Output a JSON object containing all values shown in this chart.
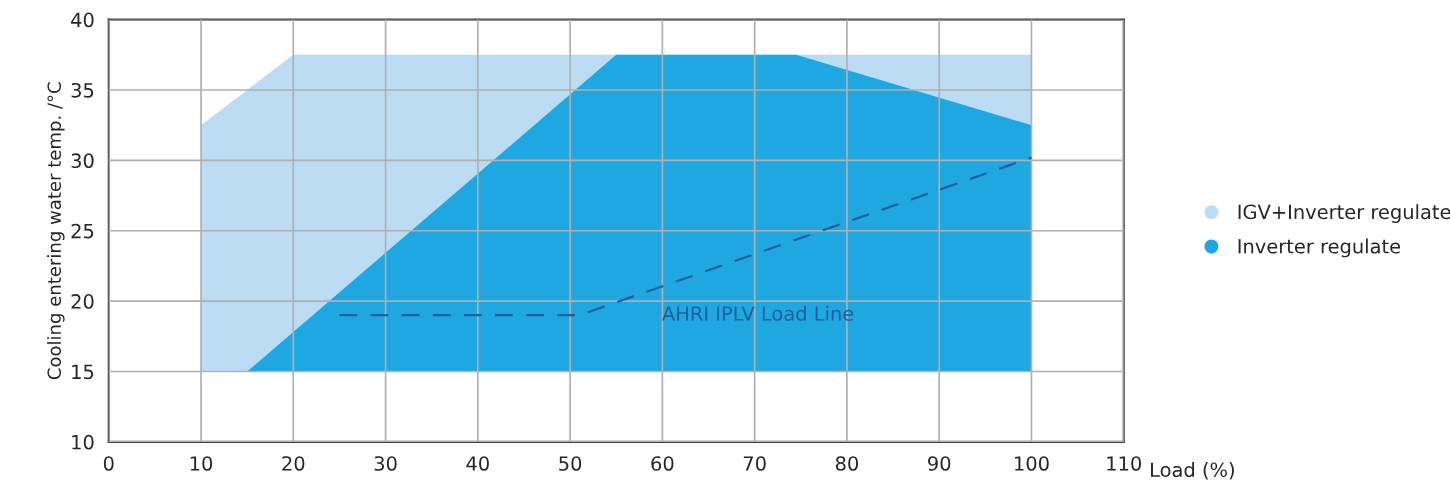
{
  "chart_data": {
    "type": "area",
    "xlabel": "Load (%)",
    "ylabel": "Cooling entering water temp. /°C",
    "xlim": [
      0,
      110
    ],
    "xticks": [
      0,
      10,
      20,
      30,
      40,
      50,
      60,
      70,
      80,
      90,
      100,
      110
    ],
    "ylim": [
      10,
      40
    ],
    "yticks": [
      10,
      15,
      20,
      25,
      30,
      35,
      40
    ],
    "series": [
      {
        "name": "IGV+Inverter regulate",
        "color": "#bcdcf4",
        "x": [
          10,
          10,
          20,
          100,
          100
        ],
        "values": [
          15,
          32.5,
          37.5,
          37.5,
          15
        ]
      },
      {
        "name": "Inverter regulate",
        "color": "#1ea7e1",
        "x": [
          15,
          55,
          74.5,
          100,
          100
        ],
        "values": [
          15,
          37.5,
          37.5,
          32.5,
          15
        ]
      },
      {
        "type": "line",
        "color": "#1f5fa0",
        "line_style": "dashed",
        "x": [
          25,
          51,
          100
        ],
        "values": [
          19,
          19,
          30.2
        ]
      }
    ],
    "annotations": [
      "AHRI IPLV Load Line"
    ],
    "grid": true,
    "legend": "right"
  }
}
